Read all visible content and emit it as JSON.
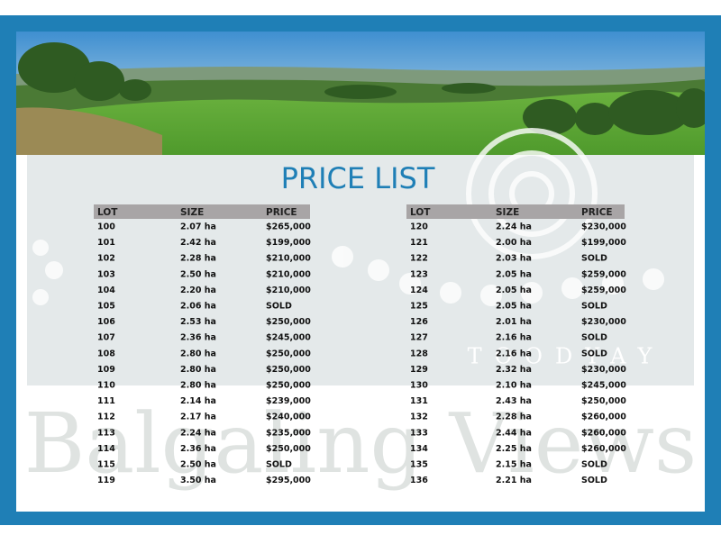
{
  "header": {
    "title": "PRICE LIST"
  },
  "watermark": {
    "town": "TOODYAY",
    "name": "Balgaling Views"
  },
  "tables": [
    {
      "columns": [
        "LOT",
        "SIZE",
        "PRICE"
      ],
      "rows": [
        [
          "100",
          "2.07 ha",
          "$265,000"
        ],
        [
          "101",
          "2.42 ha",
          "$199,000"
        ],
        [
          "102",
          "2.28 ha",
          "$210,000"
        ],
        [
          "103",
          "2.50 ha",
          "$210,000"
        ],
        [
          "104",
          "2.20 ha",
          "$210,000"
        ],
        [
          "105",
          "2.06 ha",
          "SOLD"
        ],
        [
          "106",
          "2.53 ha",
          "$250,000"
        ],
        [
          "107",
          "2.36 ha",
          "$245,000"
        ],
        [
          "108",
          "2.80 ha",
          "$250,000"
        ],
        [
          "109",
          "2.80 ha",
          "$250,000"
        ],
        [
          "110",
          "2.80 ha",
          "$250,000"
        ],
        [
          "111",
          "2.14 ha",
          "$239,000"
        ],
        [
          "112",
          "2.17 ha",
          "$240,000"
        ],
        [
          "113",
          "2.24 ha",
          "$235,000"
        ],
        [
          "114",
          "2.36 ha",
          "$250,000"
        ],
        [
          "115",
          "2.50 ha",
          "SOLD"
        ],
        [
          "119",
          "3.50 ha",
          "$295,000"
        ]
      ]
    },
    {
      "columns": [
        "LOT",
        "SIZE",
        "PRICE"
      ],
      "rows": [
        [
          "120",
          "2.24 ha",
          "$230,000"
        ],
        [
          "121",
          "2.00 ha",
          "$199,000"
        ],
        [
          "122",
          "2.03 ha",
          "SOLD"
        ],
        [
          "123",
          "2.05 ha",
          "$259,000"
        ],
        [
          "124",
          "2.05 ha",
          "$259,000"
        ],
        [
          "125",
          "2.05 ha",
          "SOLD"
        ],
        [
          "126",
          "2.01 ha",
          "$230,000"
        ],
        [
          "127",
          "2.16 ha",
          "SOLD"
        ],
        [
          "128",
          "2.16 ha",
          "SOLD"
        ],
        [
          "129",
          "2.32 ha",
          "$230,000"
        ],
        [
          "130",
          "2.10 ha",
          "$245,000"
        ],
        [
          "131",
          "2.43 ha",
          "$250,000"
        ],
        [
          "132",
          "2.28 ha",
          "$260,000"
        ],
        [
          "133",
          "2.44 ha",
          "$260,000"
        ],
        [
          "134",
          "2.25 ha",
          "$260,000"
        ],
        [
          "135",
          "2.15 ha",
          "SOLD"
        ],
        [
          "136",
          "2.21 ha",
          "SOLD"
        ]
      ]
    }
  ]
}
